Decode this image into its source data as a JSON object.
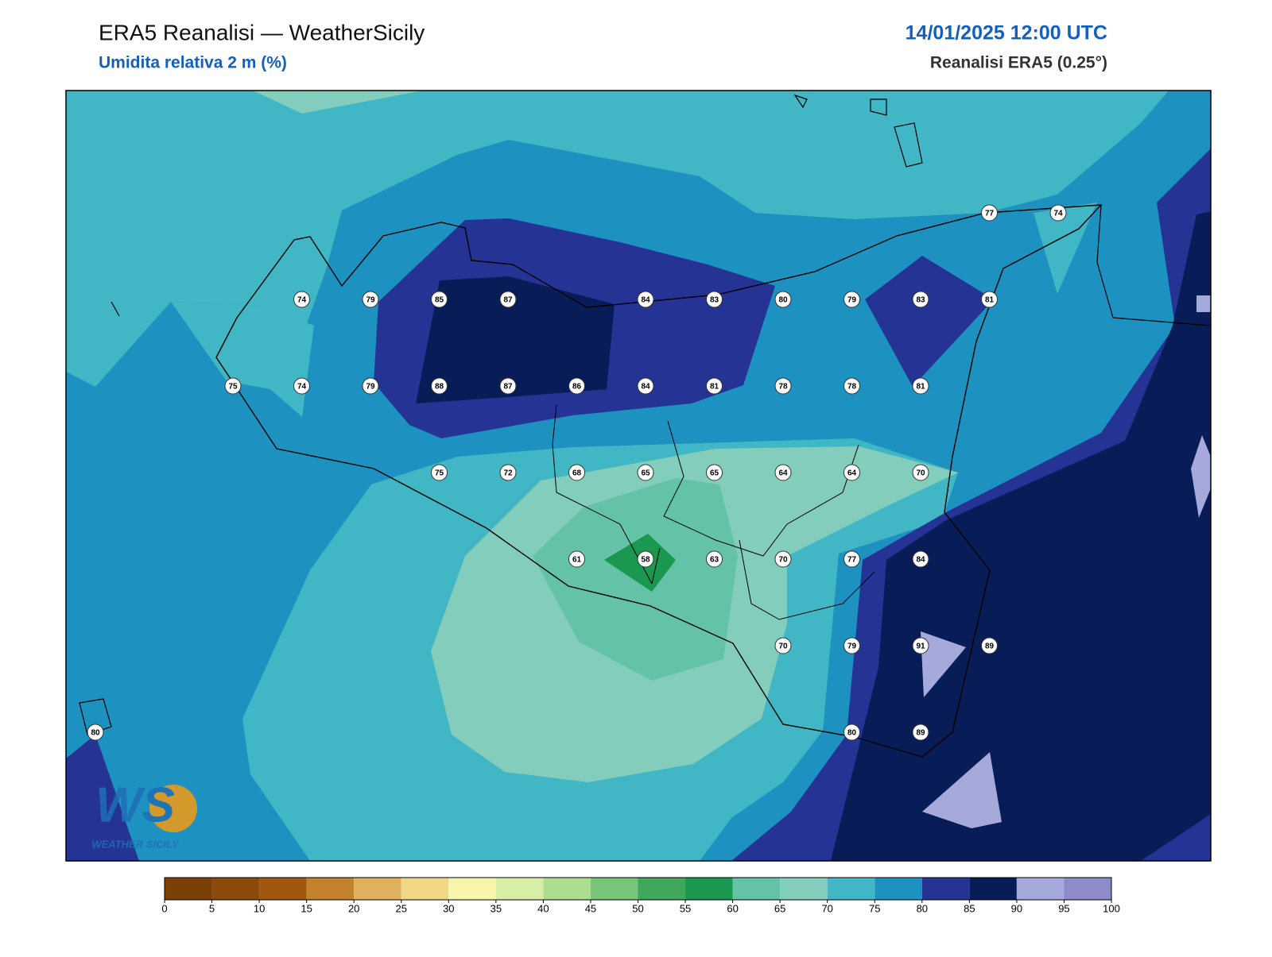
{
  "header": {
    "title": "ERA5 Reanalisi — WeatherSicily",
    "subtitle": "Umidita relativa 2 m (%)",
    "datetime": "14/01/2025 12:00 UTC",
    "source": "Reanalisi ERA5 (0.25°)"
  },
  "stations": [
    [
      77,
      74
    ],
    [
      74,
      79,
      85,
      87,
      84,
      83,
      80,
      79,
      83,
      81
    ],
    [
      75,
      74,
      79,
      88,
      87,
      86,
      84,
      81,
      78,
      78,
      81
    ],
    [
      75,
      72,
      68,
      65,
      65,
      64,
      64,
      70
    ],
    [
      61,
      58,
      63,
      70,
      77,
      84
    ],
    [
      70,
      79,
      91,
      89
    ],
    [
      80,
      80,
      89
    ]
  ],
  "colorbar": {
    "ticks": [
      0,
      5,
      10,
      15,
      20,
      25,
      30,
      35,
      40,
      45,
      50,
      55,
      60,
      65,
      70,
      75,
      80,
      85,
      90,
      95,
      100
    ],
    "colors": [
      "#7a4006",
      "#8c4a0c",
      "#a0560f",
      "#c2822d",
      "#dfb15e",
      "#f0d784",
      "#f7f5ab",
      "#d8eda6",
      "#acdd90",
      "#78c479",
      "#40a85a",
      "#1a9850",
      "#64c2a6",
      "#82cdbb",
      "#41b6c4",
      "#1d91c0",
      "#253494",
      "#081d58",
      "#a6aadb",
      "#8e8cc8"
    ]
  },
  "logo": {
    "mark": "WS",
    "text": "WEATHER SICILY"
  }
}
